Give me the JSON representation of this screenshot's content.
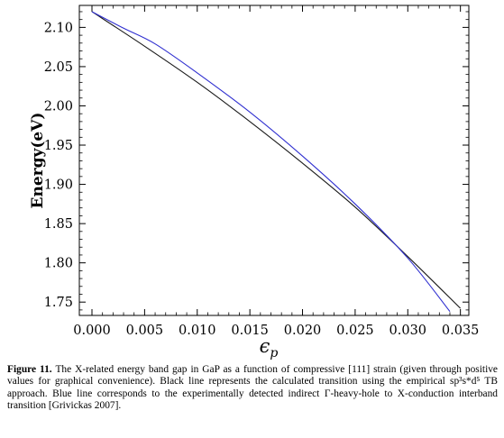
{
  "chart_data": {
    "type": "line",
    "title": "",
    "xlabel": "ϵ",
    "xlabel_sub": "p",
    "ylabel": "Energy(eV)",
    "xlim": [
      -0.0012,
      0.0358
    ],
    "ylim": [
      1.733,
      2.128
    ],
    "x_ticks": [
      0.0,
      0.005,
      0.01,
      0.015,
      0.02,
      0.025,
      0.03,
      0.035
    ],
    "x_tick_labels": [
      "0.000",
      "0.005",
      "0.010",
      "0.015",
      "0.020",
      "0.025",
      "0.030",
      "0.035"
    ],
    "y_ticks": [
      1.75,
      1.8,
      1.85,
      1.9,
      1.95,
      2.0,
      2.05,
      2.1
    ],
    "y_tick_labels": [
      "1.75",
      "1.80",
      "1.85",
      "1.90",
      "1.95",
      "2.00",
      "2.05",
      "2.10"
    ],
    "grid": false,
    "legend": "none",
    "series": [
      {
        "color": "#1a1a1a",
        "x": [
          0.0,
          0.005,
          0.01,
          0.015,
          0.02,
          0.025,
          0.03,
          0.035
        ],
        "y": [
          2.12,
          2.076,
          2.03,
          1.98,
          1.927,
          1.871,
          1.808,
          1.742
        ]
      },
      {
        "color": "#2f2fd0",
        "x": [
          0.0,
          0.003,
          0.006,
          0.01,
          0.015,
          0.02,
          0.025,
          0.03,
          0.034
        ],
        "y": [
          2.12,
          2.099,
          2.079,
          2.042,
          1.992,
          1.936,
          1.875,
          1.806,
          1.738
        ]
      }
    ]
  },
  "caption": {
    "label": "Figure 11.",
    "text": "The X-related energy band gap in GaP as a function of  compressive [111] strain (given through positive values for graphical convenience). Black line represents the calculated transition using the empirical sp³s*d⁵ TB approach. Blue line corresponds to the experimentally detected indirect Γ-heavy-hole to X-conduction interband transition [Grivickas 2007]."
  }
}
